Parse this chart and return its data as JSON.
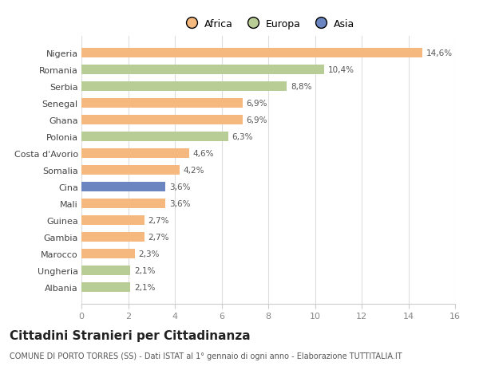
{
  "categories": [
    "Nigeria",
    "Romania",
    "Serbia",
    "Senegal",
    "Ghana",
    "Polonia",
    "Costa d'Avorio",
    "Somalia",
    "Cina",
    "Mali",
    "Guinea",
    "Gambia",
    "Marocco",
    "Ungheria",
    "Albania"
  ],
  "values": [
    14.6,
    10.4,
    8.8,
    6.9,
    6.9,
    6.3,
    4.6,
    4.2,
    3.6,
    3.6,
    2.7,
    2.7,
    2.3,
    2.1,
    2.1
  ],
  "labels": [
    "14,6%",
    "10,4%",
    "8,8%",
    "6,9%",
    "6,9%",
    "6,3%",
    "4,6%",
    "4,2%",
    "3,6%",
    "3,6%",
    "2,7%",
    "2,7%",
    "2,3%",
    "2,1%",
    "2,1%"
  ],
  "continents": [
    "Africa",
    "Europa",
    "Europa",
    "Africa",
    "Africa",
    "Europa",
    "Africa",
    "Africa",
    "Asia",
    "Africa",
    "Africa",
    "Africa",
    "Africa",
    "Europa",
    "Europa"
  ],
  "colors": {
    "Africa": "#f5b97f",
    "Europa": "#b8cc96",
    "Asia": "#6a85c0"
  },
  "legend_labels": [
    "Africa",
    "Europa",
    "Asia"
  ],
  "legend_colors": [
    "#f5b97f",
    "#b8cc96",
    "#6a85c0"
  ],
  "xlim": [
    0,
    16
  ],
  "xticks": [
    0,
    2,
    4,
    6,
    8,
    10,
    12,
    14,
    16
  ],
  "title": "Cittadini Stranieri per Cittadinanza",
  "subtitle": "COMUNE DI PORTO TORRES (SS) - Dati ISTAT al 1° gennaio di ogni anno - Elaborazione TUTTITALIA.IT",
  "background_color": "#ffffff",
  "bar_height": 0.55,
  "label_fontsize": 7.5,
  "ytick_fontsize": 8,
  "xtick_fontsize": 8,
  "title_fontsize": 11,
  "subtitle_fontsize": 7,
  "legend_fontsize": 9
}
